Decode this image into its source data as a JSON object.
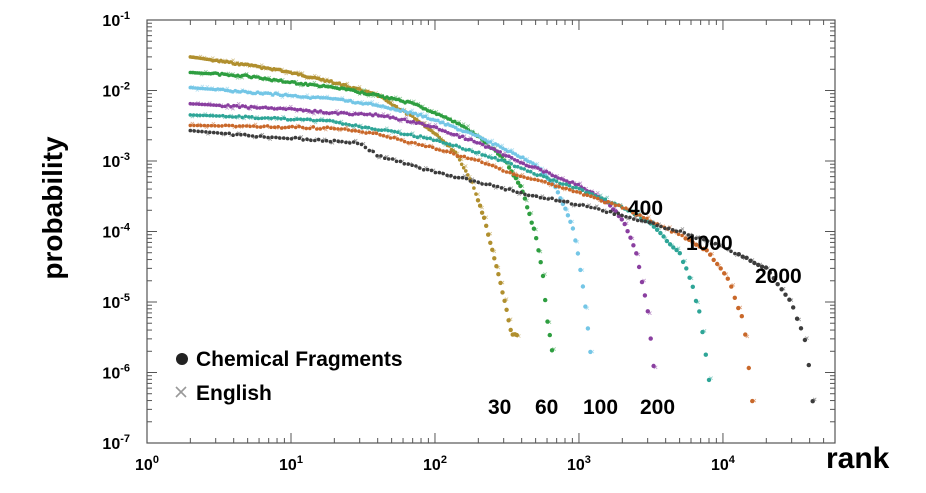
{
  "chart_data": {
    "type": "scatter",
    "xlabel": "rank",
    "ylabel": "probability",
    "xscale": "log",
    "yscale": "log",
    "xlim": [
      1,
      60000
    ],
    "ylim": [
      1e-07,
      0.1
    ],
    "grid": false,
    "legend_placement": "bottom-left",
    "x_ticks": [
      {
        "value": 1,
        "base": "10",
        "exp": "0"
      },
      {
        "value": 10,
        "base": "10",
        "exp": "1"
      },
      {
        "value": 100,
        "base": "10",
        "exp": "2"
      },
      {
        "value": 1000,
        "base": "10",
        "exp": "3"
      },
      {
        "value": 10000,
        "base": "10",
        "exp": "4"
      }
    ],
    "y_ticks": [
      {
        "value": 1e-07,
        "base": "10",
        "exp": "-7"
      },
      {
        "value": 1e-06,
        "base": "10",
        "exp": "-6"
      },
      {
        "value": 1e-05,
        "base": "10",
        "exp": "-5"
      },
      {
        "value": 0.0001,
        "base": "10",
        "exp": "-4"
      },
      {
        "value": 0.001,
        "base": "10",
        "exp": "-3"
      },
      {
        "value": 0.01,
        "base": "10",
        "exp": "-2"
      },
      {
        "value": 0.1,
        "base": "10",
        "exp": "-1"
      }
    ],
    "legend": [
      {
        "marker": "circle",
        "label": "Chemical Fragments",
        "color": "#222222"
      },
      {
        "marker": "x",
        "label": "English",
        "color": "#999999"
      }
    ],
    "curve_labels": [
      {
        "text": "30",
        "series": "30"
      },
      {
        "text": "60",
        "series": "60"
      },
      {
        "text": "100",
        "series": "100"
      },
      {
        "text": "200",
        "series": "200"
      },
      {
        "text": "400",
        "series": "400"
      },
      {
        "text": "1000",
        "series": "1000"
      },
      {
        "text": "2000",
        "series": "2000"
      }
    ],
    "series": [
      {
        "id": "30",
        "color": "#b08f2e",
        "points": [
          [
            2,
            0.03
          ],
          [
            5,
            0.023
          ],
          [
            10,
            0.018
          ],
          [
            20,
            0.013
          ],
          [
            40,
            0.0085
          ],
          [
            70,
            0.0042
          ],
          [
            100,
            0.0025
          ],
          [
            140,
            0.0013
          ],
          [
            180,
            0.0005
          ],
          [
            220,
            0.00015
          ],
          [
            260,
            4e-05
          ],
          [
            300,
            1.2e-05
          ],
          [
            340,
            3.5e-06
          ],
          [
            370,
            3.3e-06
          ]
        ]
      },
      {
        "id": "60",
        "color": "#2e9e40",
        "points": [
          [
            2,
            0.018
          ],
          [
            5,
            0.016
          ],
          [
            10,
            0.013
          ],
          [
            20,
            0.011
          ],
          [
            40,
            0.0085
          ],
          [
            70,
            0.0065
          ],
          [
            100,
            0.0048
          ],
          [
            150,
            0.0033
          ],
          [
            200,
            0.0022
          ],
          [
            300,
            0.0011
          ],
          [
            400,
            0.0004
          ],
          [
            500,
            9e-05
          ],
          [
            560,
            2.5e-05
          ],
          [
            600,
            6e-06
          ],
          [
            650,
            2e-06
          ]
        ]
      },
      {
        "id": "100",
        "color": "#74c6e6",
        "points": [
          [
            2,
            0.011
          ],
          [
            5,
            0.0095
          ],
          [
            10,
            0.0085
          ],
          [
            20,
            0.0075
          ],
          [
            40,
            0.0062
          ],
          [
            70,
            0.0048
          ],
          [
            100,
            0.0038
          ],
          [
            200,
            0.0022
          ],
          [
            300,
            0.0015
          ],
          [
            500,
            0.0009
          ],
          [
            700,
            0.0004
          ],
          [
            900,
            0.00012
          ],
          [
            1000,
            4e-05
          ],
          [
            1100,
            1e-05
          ],
          [
            1200,
            2e-06
          ]
        ]
      },
      {
        "id": "200",
        "color": "#8a3fa0",
        "points": [
          [
            2,
            0.0065
          ],
          [
            5,
            0.0058
          ],
          [
            10,
            0.0054
          ],
          [
            20,
            0.0048
          ],
          [
            40,
            0.0045
          ],
          [
            70,
            0.0036
          ],
          [
            100,
            0.003
          ],
          [
            200,
            0.0018
          ],
          [
            400,
            0.00095
          ],
          [
            700,
            0.0006
          ],
          [
            1000,
            0.00045
          ],
          [
            1500,
            0.00028
          ],
          [
            2000,
            0.00015
          ],
          [
            2500,
            5e-05
          ],
          [
            3000,
            8e-06
          ],
          [
            3300,
            1.2e-06
          ]
        ]
      },
      {
        "id": "400",
        "color": "#2ea597",
        "points": [
          [
            2,
            0.0045
          ],
          [
            5,
            0.0042
          ],
          [
            10,
            0.0039
          ],
          [
            20,
            0.0036
          ],
          [
            40,
            0.0028
          ],
          [
            70,
            0.0023
          ],
          [
            100,
            0.002
          ],
          [
            200,
            0.0013
          ],
          [
            400,
            0.0008
          ],
          [
            700,
            0.0005
          ],
          [
            1000,
            0.0004
          ],
          [
            2000,
            0.00022
          ],
          [
            3000,
            0.00014
          ],
          [
            5000,
            5e-05
          ],
          [
            6000,
            2e-05
          ],
          [
            7000,
            6e-06
          ],
          [
            8000,
            8e-07
          ]
        ]
      },
      {
        "id": "1000",
        "color": "#c9682a",
        "points": [
          [
            2,
            0.0032
          ],
          [
            5,
            0.0031
          ],
          [
            10,
            0.003
          ],
          [
            20,
            0.0029
          ],
          [
            40,
            0.0024
          ],
          [
            70,
            0.0018
          ],
          [
            100,
            0.0015
          ],
          [
            200,
            0.001
          ],
          [
            400,
            0.0006
          ],
          [
            700,
            0.00045
          ],
          [
            1000,
            0.00035
          ],
          [
            2000,
            0.00022
          ],
          [
            5000,
            9e-05
          ],
          [
            8000,
            5e-05
          ],
          [
            11000,
            2e-05
          ],
          [
            14000,
            5e-06
          ],
          [
            16000,
            4e-07
          ]
        ]
      },
      {
        "id": "2000",
        "color": "#3c3c3c",
        "points": [
          [
            2,
            0.0027
          ],
          [
            5,
            0.0023
          ],
          [
            10,
            0.0021
          ],
          [
            20,
            0.0019
          ],
          [
            30,
            0.0018
          ],
          [
            40,
            0.0012
          ],
          [
            70,
            0.00085
          ],
          [
            100,
            0.0007
          ],
          [
            200,
            0.0005
          ],
          [
            400,
            0.00035
          ],
          [
            700,
            0.00028
          ],
          [
            1000,
            0.00024
          ],
          [
            2000,
            0.00017
          ],
          [
            5000,
            0.0001
          ],
          [
            10000,
            6e-05
          ],
          [
            20000,
            3e-05
          ],
          [
            30000,
            1e-05
          ],
          [
            38000,
            2.5e-06
          ],
          [
            42000,
            4e-07
          ]
        ]
      }
    ]
  }
}
